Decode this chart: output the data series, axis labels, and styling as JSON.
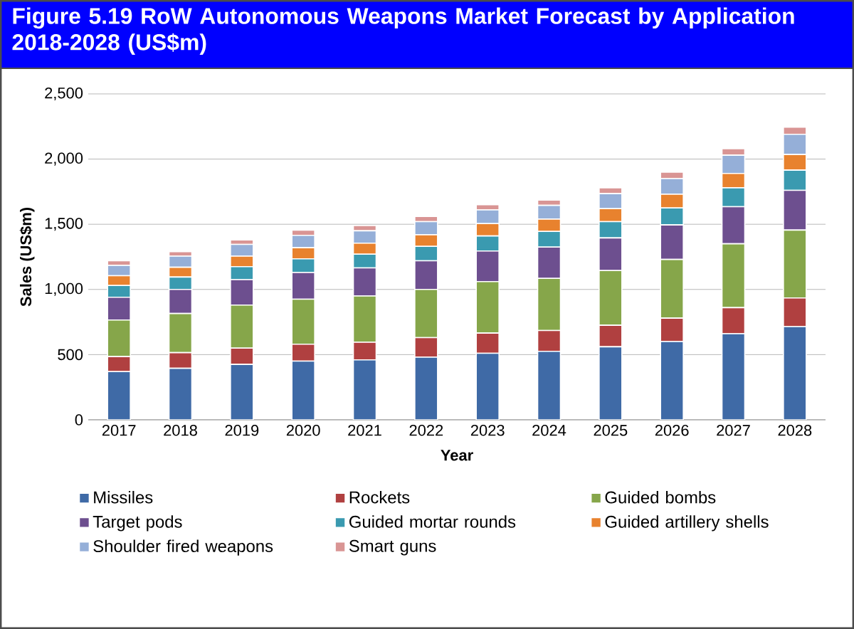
{
  "chart_data": {
    "type": "bar",
    "stacked": true,
    "title": "Figure 5.19 RoW Autonomous Weapons Market Forecast by Application 2018-2028 (US$m)",
    "xlabel": "Year",
    "ylabel": "Sales (US$m)",
    "categories": [
      "2017",
      "2018",
      "2019",
      "2020",
      "2021",
      "2022",
      "2023",
      "2024",
      "2025",
      "2026",
      "2027",
      "2028"
    ],
    "series": [
      {
        "name": "Missiles",
        "color": "#3f6aa6",
        "values": [
          370,
          395,
          425,
          450,
          460,
          480,
          510,
          525,
          560,
          600,
          660,
          715
        ]
      },
      {
        "name": "Rockets",
        "color": "#b04040",
        "values": [
          115,
          120,
          125,
          130,
          135,
          150,
          155,
          160,
          165,
          180,
          200,
          220
        ]
      },
      {
        "name": "Guided bombs",
        "color": "#86a64a",
        "values": [
          280,
          300,
          330,
          345,
          355,
          370,
          395,
          400,
          420,
          450,
          490,
          520
        ]
      },
      {
        "name": "Target pods",
        "color": "#6d4f8f",
        "values": [
          175,
          185,
          195,
          205,
          215,
          220,
          235,
          240,
          250,
          265,
          285,
          305
        ]
      },
      {
        "name": "Guided mortar rounds",
        "color": "#3a9ab0",
        "values": [
          90,
          95,
          100,
          105,
          105,
          110,
          115,
          120,
          125,
          130,
          145,
          155
        ]
      },
      {
        "name": "Guided artillery shells",
        "color": "#e8822e",
        "values": [
          75,
          75,
          80,
          85,
          85,
          90,
          95,
          95,
          100,
          105,
          110,
          120
        ]
      },
      {
        "name": "Shoulder fired weapons",
        "color": "#95afd8",
        "values": [
          80,
          85,
          90,
          95,
          95,
          100,
          105,
          105,
          115,
          120,
          140,
          155
        ]
      },
      {
        "name": "Smart guns",
        "color": "#d99594",
        "values": [
          35,
          35,
          35,
          40,
          40,
          40,
          40,
          40,
          45,
          50,
          50,
          55
        ]
      }
    ],
    "ylim": [
      0,
      2500
    ],
    "yticks": [
      0,
      500,
      {
        "value": 1000,
        "label": "1,000"
      },
      {
        "value": 1500,
        "label": "1,500"
      },
      {
        "value": 2000,
        "label": "2,000"
      },
      {
        "value": 2500,
        "label": "2,500"
      }
    ],
    "grid": "y",
    "legend": "bottom"
  }
}
